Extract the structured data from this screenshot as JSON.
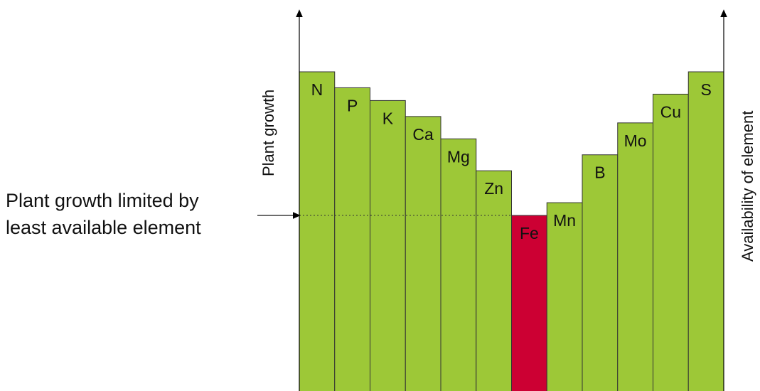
{
  "axes": {
    "left_label": "Plant growth",
    "right_label": "Availability of element"
  },
  "callout": {
    "line1": "Plant growth limited by",
    "line2": "least available element"
  },
  "colors": {
    "bar_fill": "#9dc837",
    "limiting_fill": "#cc0033",
    "bar_stroke": "#333333",
    "axis": "#000000"
  },
  "elements": [
    {
      "symbol": "N",
      "availability": 100,
      "limiting": false
    },
    {
      "symbol": "P",
      "availability": 95,
      "limiting": false
    },
    {
      "symbol": "K",
      "availability": 91,
      "limiting": false
    },
    {
      "symbol": "Ca",
      "availability": 86,
      "limiting": false
    },
    {
      "symbol": "Mg",
      "availability": 79,
      "limiting": false
    },
    {
      "symbol": "Zn",
      "availability": 69,
      "limiting": false
    },
    {
      "symbol": "Fe",
      "availability": 55,
      "limiting": true
    },
    {
      "symbol": "Mn",
      "availability": 59,
      "limiting": false
    },
    {
      "symbol": "B",
      "availability": 74,
      "limiting": false
    },
    {
      "symbol": "Mo",
      "availability": 84,
      "limiting": false
    },
    {
      "symbol": "Cu",
      "availability": 93,
      "limiting": false
    },
    {
      "symbol": "S",
      "availability": 100,
      "limiting": false
    }
  ]
}
